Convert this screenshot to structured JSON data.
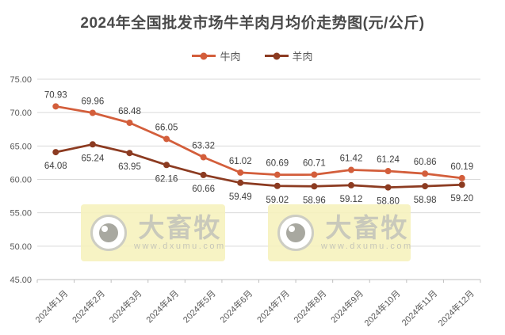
{
  "title": "2024年全国批发市场牛羊肉月均价走势图(元/公斤)",
  "chart_data": {
    "type": "line",
    "categories": [
      "2024年1月",
      "2024年2月",
      "2024年3月",
      "2024年4月",
      "2024年5月",
      "2024年6月",
      "2024年7月",
      "2024年8月",
      "2024年9月",
      "2024年10月",
      "2024年11月",
      "2024年12月"
    ],
    "series": [
      {
        "name": "牛肉",
        "color": "#D35E3B",
        "label_position": "above",
        "values": [
          70.93,
          69.96,
          68.48,
          66.05,
          63.32,
          61.02,
          60.69,
          60.71,
          61.42,
          61.24,
          60.86,
          60.19
        ]
      },
      {
        "name": "羊肉",
        "color": "#8C3B21",
        "label_position": "below",
        "values": [
          64.08,
          65.24,
          63.95,
          62.16,
          60.66,
          59.49,
          59.02,
          58.96,
          59.12,
          58.8,
          58.98,
          59.2
        ]
      }
    ],
    "ylim": [
      45,
      75
    ],
    "ytick_step": 5,
    "ytick_decimals": 2,
    "value_label_decimals": 2,
    "grid": true,
    "legend_position": "top"
  },
  "watermark": {
    "brand": "大畜牧",
    "url": "www.dxumu.com"
  },
  "colors": {
    "grid": "#D9D9D9",
    "axis": "#BFBFBF",
    "tick_label": "#595959",
    "value_label": "#404040",
    "title": "#4A4A4A",
    "watermark_bg": "#F6F1BC",
    "watermark_fg": "#C9C9BB"
  }
}
